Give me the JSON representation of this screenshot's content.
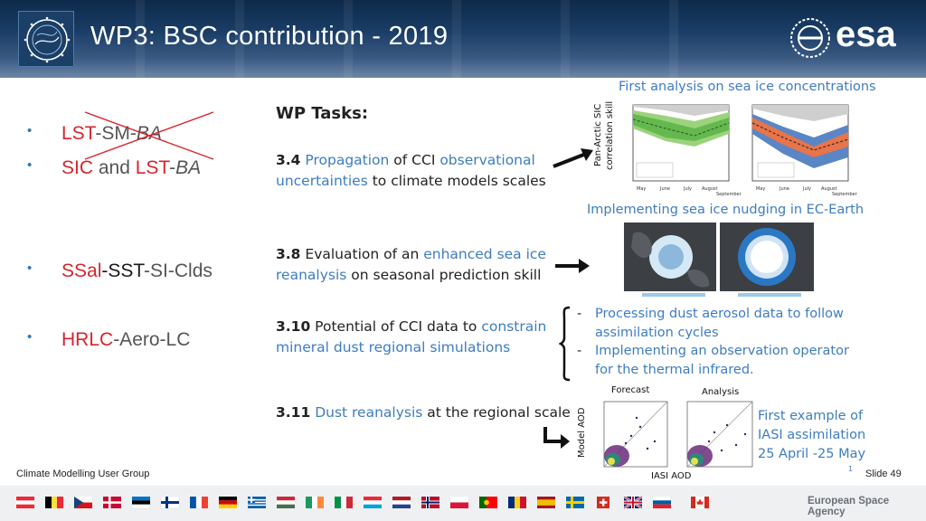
{
  "header": {
    "title": "WP3: BSC contribution - 2019",
    "logo_text": "esa"
  },
  "bullets": [
    {
      "parts": [
        "LST",
        "-SM-",
        "BA"
      ],
      "struck": true
    },
    {
      "parts": [
        "SIC",
        " and ",
        "LST",
        "-",
        "BA"
      ]
    },
    {
      "parts": [
        "SSal",
        "-SST",
        "-SI-Clds"
      ]
    },
    {
      "parts": [
        "HRLC",
        "-Aero-LC"
      ]
    }
  ],
  "tasks": {
    "heading": "WP Tasks:",
    "t34": {
      "num": "3.4",
      "p1": "Propagation",
      "p2": " of CCI ",
      "p3": "observational uncertainties",
      "p4": " to climate models scales"
    },
    "t38": {
      "num": "3.8",
      "p1": " Evaluation of an ",
      "p2": "enhanced sea ice reanalysis",
      "p3": " on seasonal prediction skill"
    },
    "t310": {
      "num": "3.10",
      "p1": " Potential of CCI data to ",
      "p2": "constrain mineral dust regional simulations"
    },
    "t311": {
      "num": "3.11",
      "p1": "Dust reanalysis",
      "p2": " at the regional scale"
    }
  },
  "right": {
    "cap1": "First analysis on sea ice concentrations",
    "cap2": "Implementing sea ice nudging in EC-Earth",
    "dust1": "Processing dust aerosol data to follow",
    "dust1b": "assimilation cycles",
    "dust2": "Implementing an observation operator",
    "dust2b": "for the thermal infrared.",
    "iasi1": "First example of",
    "iasi2": "IASI assimilation",
    "iasi3": "25 April -25 May",
    "fig_forecast": "Forecast",
    "fig_analysis": "Analysis",
    "fig_ylabel": "Model AOD",
    "fig_xlabel": "IASI AOD",
    "sic_ylabel1": "Pan-Arctic SIC",
    "sic_ylabel2": "correlation skill",
    "fig_footnote": "1"
  },
  "footer": {
    "left": "Climate Modelling User Group",
    "slide": "Slide  49",
    "agency": "European Space Agency"
  },
  "colors": {
    "accent_blue": "#3e7cc1",
    "accent_red": "#d8242f",
    "header_bg": "#1a3d66"
  }
}
